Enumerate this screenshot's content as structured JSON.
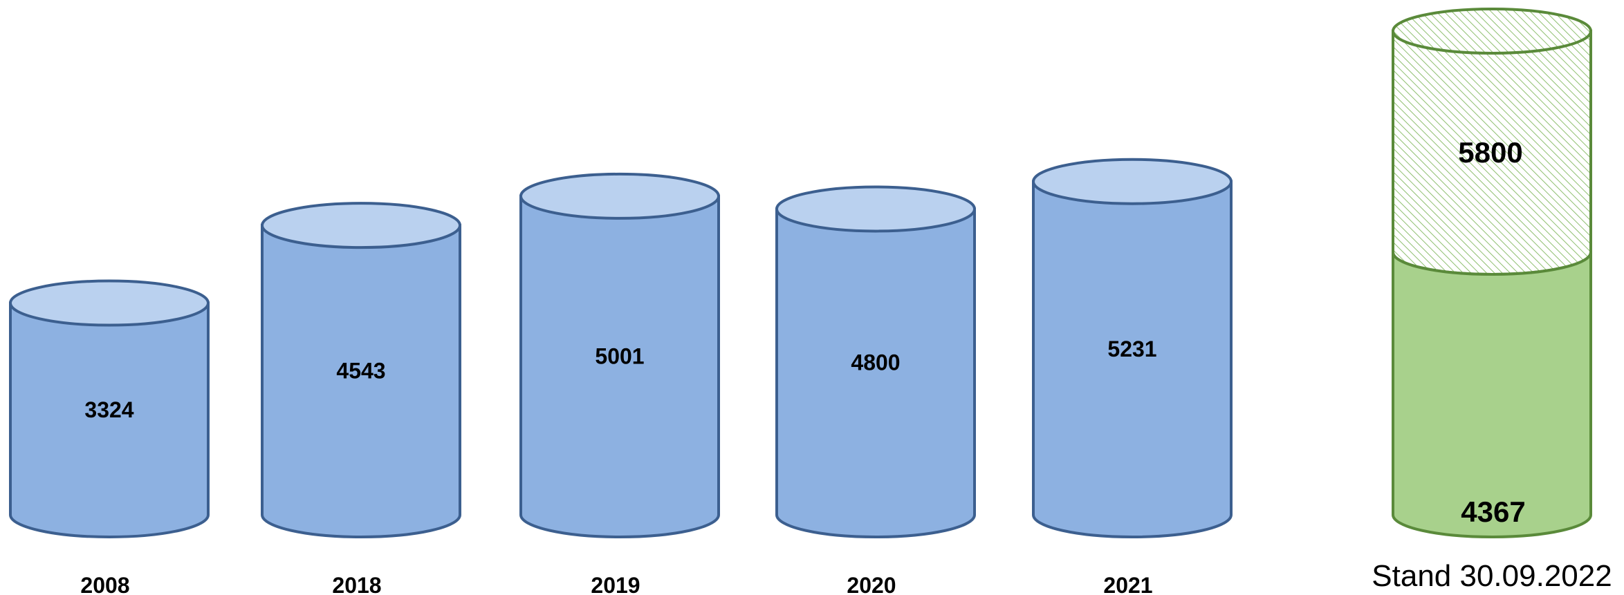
{
  "chart_data": {
    "type": "bar",
    "style": "3d-cylinder",
    "categories": [
      "2008",
      "2018",
      "2019",
      "2020",
      "2021",
      "Stand 30.09.2022"
    ],
    "values": [
      3324,
      4543,
      5001,
      4800,
      5231,
      4367
    ],
    "projected": {
      "category": "Stand 30.09.2022",
      "target": 5800,
      "actual": 4367
    },
    "value_labels": [
      "3324",
      "4543",
      "5001",
      "4800",
      "5231",
      "4367"
    ],
    "projected_label": "5800",
    "colors": {
      "bar_side": "#8db1e1",
      "bar_top": "#bad1ef",
      "bar_stroke": "#3c5f8f",
      "current_side": "#a8d18c",
      "current_stroke": "#5a8a3a",
      "projected_hatch": "#a8d18c"
    },
    "title": "",
    "xlabel": "",
    "ylabel": "",
    "grid": false
  }
}
